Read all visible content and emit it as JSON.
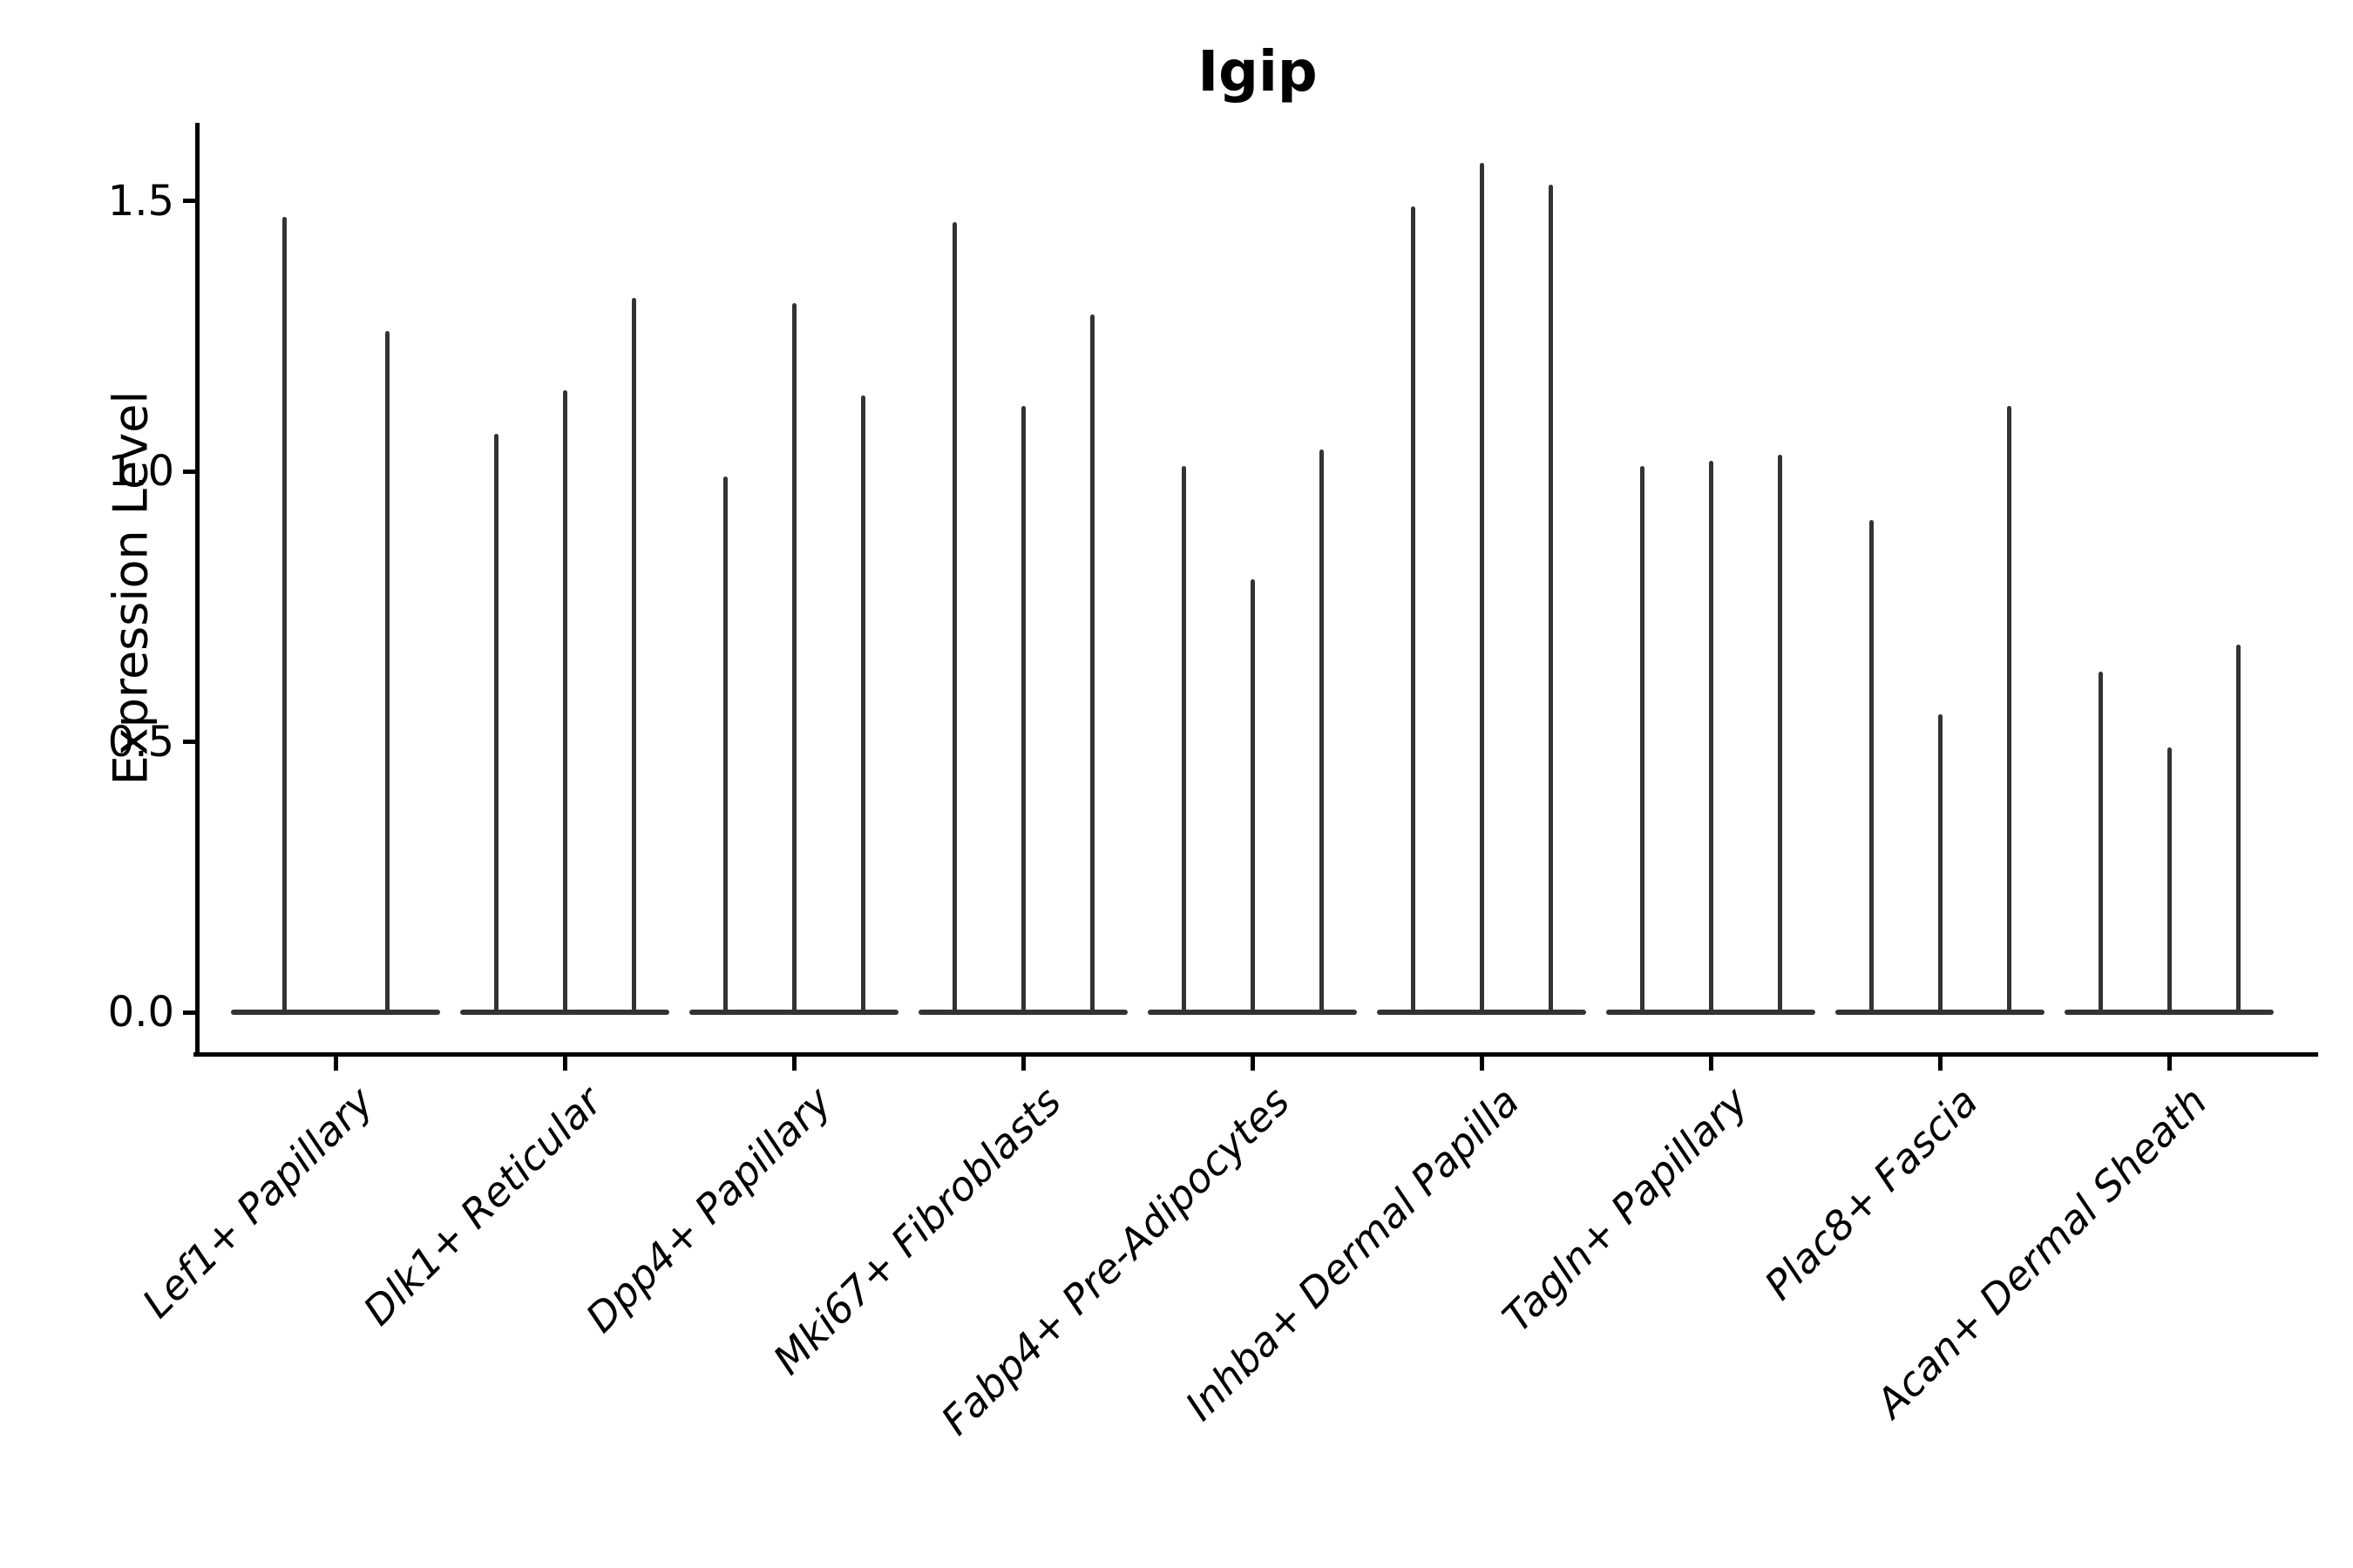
{
  "title": "Igip",
  "y_axis": {
    "label": "Expression Level",
    "tick_labels": [
      "0.0",
      "0.5",
      "1.0",
      "1.5"
    ],
    "tick_values": [
      0.0,
      0.5,
      1.0,
      1.5
    ]
  },
  "chart_data": {
    "type": "violin",
    "title": "Igip",
    "xlabel": "",
    "ylabel": "Expression Level",
    "ylim": [
      0,
      1.65
    ],
    "grid": false,
    "legend": "none",
    "categories": [
      "Lef1+ Papillary",
      "Dlk1+ Reticular",
      "Dpp4+ Papillary",
      "Mki67+ Fibroblasts",
      "Fabp4+ Pre-Adipocytes",
      "Inhba+ Dermal Papilla",
      "Tagln+ Papillary",
      "Plac8+ Fascia",
      "Acan+ Dermal Sheath"
    ],
    "groups": [
      {
        "category": "Lef1+ Papillary",
        "violin_max_values": [
          1.47,
          1.26
        ]
      },
      {
        "category": "Dlk1+ Reticular",
        "violin_max_values": [
          1.07,
          1.15,
          1.32
        ]
      },
      {
        "category": "Dpp4+ Papillary",
        "violin_max_values": [
          0.99,
          1.31,
          1.14
        ]
      },
      {
        "category": "Mki67+ Fibroblasts",
        "violin_max_values": [
          1.46,
          1.12,
          1.29
        ]
      },
      {
        "category": "Fabp4+ Pre-Adipocytes",
        "violin_max_values": [
          1.01,
          0.8,
          1.04
        ]
      },
      {
        "category": "Inhba+ Dermal Papilla",
        "violin_max_values": [
          1.49,
          1.57,
          1.53
        ]
      },
      {
        "category": "Tagln+ Papillary",
        "violin_max_values": [
          1.01,
          1.02,
          1.03
        ]
      },
      {
        "category": "Plac8+ Fascia",
        "violin_max_values": [
          0.91,
          0.55,
          1.12
        ]
      },
      {
        "category": "Acan+ Dermal Sheath",
        "violin_max_values": [
          0.63,
          0.49,
          0.68
        ]
      }
    ],
    "violins_baseline_value": 0.0,
    "colors": {
      "violin": "#333333",
      "axes": "#000000",
      "background": "#ffffff"
    }
  }
}
